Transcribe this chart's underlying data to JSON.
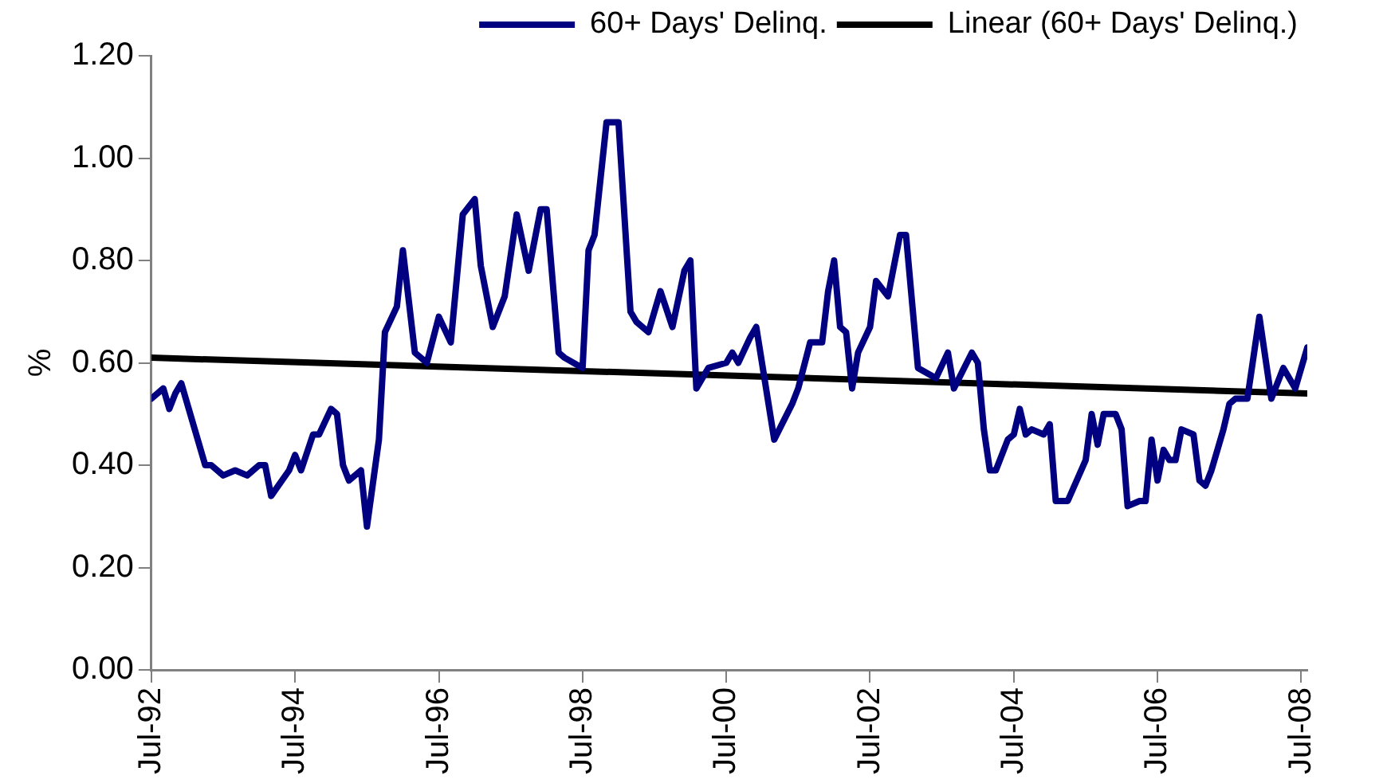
{
  "chart_data": {
    "type": "line",
    "ylabel": "%",
    "legend": "top",
    "marker": "none",
    "grid": false,
    "xlim": [
      "1992-07",
      "2008-08"
    ],
    "xticks": [
      {
        "value": "1992-07",
        "label": "Jul-92"
      },
      {
        "value": "1994-07",
        "label": "Jul-94"
      },
      {
        "value": "1996-07",
        "label": "Jul-96"
      },
      {
        "value": "1998-07",
        "label": "Jul-98"
      },
      {
        "value": "2000-07",
        "label": "Jul-00"
      },
      {
        "value": "2002-07",
        "label": "Jul-02"
      },
      {
        "value": "2004-07",
        "label": "Jul-04"
      },
      {
        "value": "2006-07",
        "label": "Jul-06"
      },
      {
        "value": "2008-07",
        "label": "Jul-08"
      }
    ],
    "ylim": [
      0,
      1.2
    ],
    "yticks": [
      {
        "value": 0,
        "label": "0.00"
      },
      {
        "value": 0.2,
        "label": "0.20"
      },
      {
        "value": 0.4,
        "label": "0.40"
      },
      {
        "value": 0.6,
        "label": "0.60"
      },
      {
        "value": 0.8,
        "label": "0.80"
      },
      {
        "value": 1,
        "label": "1.00"
      },
      {
        "value": 1.2,
        "label": "1.20"
      }
    ],
    "series": [
      {
        "name": "60+ Days' Delinq.",
        "color": "#000080",
        "x": [
          "1992-07",
          "1992-09",
          "1992-10",
          "1992-11",
          "1992-12",
          "1993-04",
          "1993-05",
          "1993-07",
          "1993-09",
          "1993-11",
          "1994-01",
          "1994-02",
          "1994-03",
          "1994-06",
          "1994-07",
          "1994-08",
          "1994-10",
          "1994-11",
          "1995-01",
          "1995-02",
          "1995-03",
          "1995-04",
          "1995-06",
          "1995-07",
          "1995-09",
          "1995-10",
          "1995-12",
          "1996-01",
          "1996-03",
          "1996-05",
          "1996-07",
          "1996-09",
          "1996-11",
          "1997-01",
          "1997-02",
          "1997-04",
          "1997-06",
          "1997-08",
          "1997-10",
          "1997-12",
          "1998-01",
          "1998-03",
          "1998-04",
          "1998-07",
          "1998-08",
          "1998-09",
          "1998-11",
          "1999-01",
          "1999-03",
          "1999-04",
          "1999-06",
          "1999-08",
          "1999-10",
          "1999-12",
          "2000-01",
          "2000-02",
          "2000-04",
          "2000-07",
          "2000-08",
          "2000-09",
          "2000-11",
          "2000-12",
          "2001-03",
          "2001-06",
          "2001-07",
          "2001-09",
          "2001-11",
          "2001-12",
          "2002-01",
          "2002-02",
          "2002-03",
          "2002-04",
          "2002-05",
          "2002-07",
          "2002-08",
          "2002-10",
          "2002-12",
          "2003-01",
          "2003-03",
          "2003-06",
          "2003-08",
          "2003-09",
          "2003-12",
          "2004-01",
          "2004-02",
          "2004-03",
          "2004-04",
          "2004-06",
          "2004-07",
          "2004-08",
          "2004-09",
          "2004-10",
          "2004-12",
          "2005-01",
          "2005-02",
          "2005-04",
          "2005-07",
          "2005-08",
          "2005-09",
          "2005-10",
          "2005-12",
          "2006-01",
          "2006-02",
          "2006-04",
          "2006-05",
          "2006-06",
          "2006-07",
          "2006-08",
          "2006-09",
          "2006-10",
          "2006-11",
          "2007-01",
          "2007-02",
          "2007-03",
          "2007-04",
          "2007-06",
          "2007-07",
          "2007-08",
          "2007-10",
          "2007-12",
          "2008-02",
          "2008-04",
          "2008-06",
          "2008-08"
        ],
        "values": [
          0.53,
          0.55,
          0.51,
          0.54,
          0.56,
          0.4,
          0.4,
          0.38,
          0.39,
          0.38,
          0.4,
          0.4,
          0.34,
          0.39,
          0.42,
          0.39,
          0.46,
          0.46,
          0.51,
          0.5,
          0.4,
          0.37,
          0.39,
          0.28,
          0.45,
          0.66,
          0.71,
          0.82,
          0.62,
          0.6,
          0.69,
          0.64,
          0.89,
          0.92,
          0.79,
          0.67,
          0.73,
          0.89,
          0.78,
          0.9,
          0.9,
          0.62,
          0.61,
          0.59,
          0.82,
          0.85,
          1.07,
          1.07,
          0.7,
          0.68,
          0.66,
          0.74,
          0.67,
          0.78,
          0.8,
          0.55,
          0.59,
          0.6,
          0.62,
          0.6,
          0.65,
          0.67,
          0.45,
          0.52,
          0.55,
          0.64,
          0.64,
          0.74,
          0.8,
          0.67,
          0.66,
          0.55,
          0.62,
          0.67,
          0.76,
          0.73,
          0.85,
          0.85,
          0.59,
          0.57,
          0.62,
          0.55,
          0.62,
          0.6,
          0.47,
          0.39,
          0.39,
          0.45,
          0.46,
          0.51,
          0.46,
          0.47,
          0.46,
          0.48,
          0.33,
          0.33,
          0.41,
          0.5,
          0.44,
          0.5,
          0.5,
          0.47,
          0.32,
          0.33,
          0.33,
          0.45,
          0.37,
          0.43,
          0.41,
          0.41,
          0.47,
          0.46,
          0.37,
          0.36,
          0.39,
          0.47,
          0.52,
          0.53,
          0.53,
          0.69,
          0.53,
          0.59,
          0.55,
          0.63
        ]
      },
      {
        "name": "Linear (60+ Days' Delinq.)",
        "type": "line",
        "color": "#000000",
        "x": [
          "1992-07",
          "2008-08"
        ],
        "values": [
          0.61,
          0.54
        ]
      }
    ]
  }
}
